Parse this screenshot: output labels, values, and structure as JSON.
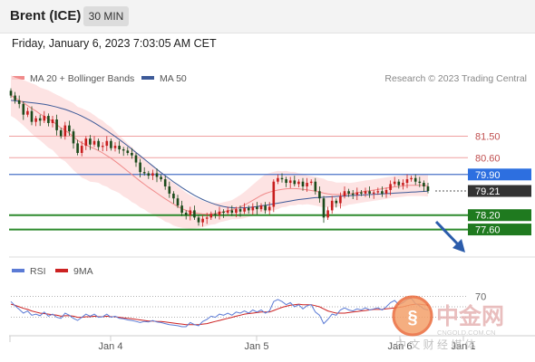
{
  "header": {
    "instrument": "Brent (ICE)",
    "timeframe": "30 MIN",
    "datetime": "Friday, January 6, 2023 7:03:05 AM CET"
  },
  "legend": {
    "ma20_label": "MA 20 + Bollinger Bands",
    "ma50_label": "MA 50",
    "credit": "Research © 2023 Trading Central",
    "rsi_label": "RSI",
    "rsi_ma_label": "9MA"
  },
  "colors": {
    "ma20": "#f08a8a",
    "ma50": "#3d5a98",
    "resistance": "#f0a0a0",
    "pivot": "#4a72c8",
    "support": "#2e8b2e",
    "current_price": "#333333",
    "rsi": "#5b7bd5",
    "rsi_ma": "#cc2222",
    "arrow": "#2b5cab",
    "bands": "#fcdcdc"
  },
  "watermark": {
    "brand": "中金网",
    "domain": "CNGOLD.COM.CN",
    "tagline": "中 文 财 经 媒 体"
  },
  "chart_data": {
    "type": "candlestick",
    "price_axis": {
      "min": 76.6,
      "max": 83.6
    },
    "levels": {
      "resistance": [
        81.5,
        80.6
      ],
      "pivot": 79.9,
      "support": [
        78.2,
        77.6
      ],
      "current": 79.21
    },
    "level_labels": {
      "r1": "81.50",
      "r2": "80.60",
      "pivot": "79.90",
      "current": "79.21",
      "s1": "78.20",
      "s2": "77.60"
    },
    "x_ticks": [
      "Jan 4",
      "Jan 5",
      "Jan 6",
      "Jan 1"
    ],
    "rsi_ticks": [
      "70"
    ],
    "close": [
      83.2,
      83.0,
      82.85,
      82.4,
      82.55,
      82.1,
      82.25,
      82.15,
      82.35,
      82.05,
      82.2,
      81.75,
      81.5,
      81.95,
      81.7,
      81.2,
      80.8,
      81.1,
      81.4,
      81.15,
      81.3,
      81.05,
      81.1,
      81.3,
      81.0,
      81.1,
      80.95,
      80.9,
      80.8,
      80.7,
      80.4,
      80.0,
      79.95,
      79.85,
      79.95,
      79.8,
      79.7,
      79.4,
      79.1,
      78.9,
      78.6,
      78.3,
      78.2,
      78.4,
      78.1,
      77.9,
      78.05,
      78.1,
      78.25,
      78.2,
      78.35,
      78.3,
      78.4,
      78.3,
      78.45,
      78.35,
      78.5,
      78.4,
      78.55,
      78.45,
      78.6,
      78.4,
      78.55,
      79.6,
      79.75,
      79.7,
      79.55,
      79.65,
      79.5,
      79.6,
      79.4,
      79.55,
      79.6,
      79.2,
      78.9,
      78.1,
      78.4,
      78.8,
      78.7,
      79.0,
      79.2,
      79.1,
      79.05,
      79.15,
      79.1,
      79.2,
      79.1,
      79.15,
      79.2,
      79.1,
      79.25,
      79.5,
      79.6,
      79.45,
      79.55,
      79.7,
      79.75,
      79.6,
      79.55,
      79.4,
      79.21
    ],
    "ma20": [
      83.2,
      83.1,
      83.0,
      82.9,
      82.78,
      82.66,
      82.55,
      82.43,
      82.33,
      82.22,
      82.12,
      81.98,
      81.85,
      81.75,
      81.62,
      81.48,
      81.33,
      81.22,
      81.14,
      81.05,
      80.98,
      80.9,
      80.8,
      80.69,
      80.58,
      80.45,
      80.32,
      80.18,
      80.04,
      79.9,
      79.76,
      79.62,
      79.49,
      79.36,
      79.24,
      79.12,
      79.0,
      78.88,
      78.77,
      78.66,
      78.56,
      78.47,
      78.4,
      78.34,
      78.3,
      78.27,
      78.25,
      78.24,
      78.25,
      78.27,
      78.3,
      78.34,
      78.38,
      78.43,
      78.48,
      78.54,
      78.62,
      78.72,
      78.82,
      78.92,
      79.02,
      79.1,
      79.16,
      79.21,
      79.25,
      79.28,
      79.3,
      79.31,
      79.31,
      79.3,
      79.28,
      79.26,
      79.23,
      79.2,
      79.16,
      79.12,
      79.09,
      79.07,
      79.06,
      79.06,
      79.07,
      79.09,
      79.11,
      79.14,
      79.17,
      79.2,
      79.22,
      79.25,
      79.27,
      79.3,
      79.33,
      79.36,
      79.38,
      79.4,
      79.42,
      79.44,
      79.45,
      79.45,
      79.45,
      79.44,
      79.43
    ],
    "ma50": [
      83.0,
      82.98,
      82.96,
      82.94,
      82.92,
      82.9,
      82.88,
      82.86,
      82.83,
      82.8,
      82.76,
      82.72,
      82.67,
      82.62,
      82.56,
      82.49,
      82.42,
      82.34,
      82.25,
      82.16,
      82.06,
      81.95,
      81.84,
      81.73,
      81.61,
      81.49,
      81.36,
      81.23,
      81.1,
      80.96,
      80.82,
      80.68,
      80.54,
      80.4,
      80.26,
      80.12,
      79.98,
      79.85,
      79.72,
      79.59,
      79.47,
      79.35,
      79.24,
      79.13,
      79.03,
      78.94,
      78.85,
      78.78,
      78.71,
      78.65,
      78.6,
      78.56,
      78.53,
      78.51,
      78.5,
      78.5,
      78.51,
      78.52,
      78.54,
      78.56,
      78.59,
      78.61,
      78.64,
      78.67,
      78.7,
      78.73,
      78.76,
      78.79,
      78.82,
      78.85,
      78.87,
      78.89,
      78.91,
      78.93,
      78.94,
      78.95,
      78.96,
      78.97,
      78.98,
      78.99,
      79.0,
      79.01,
      79.02,
      79.03,
      79.04,
      79.05,
      79.06,
      79.07,
      79.08,
      79.09,
      79.1,
      79.11,
      79.12,
      79.13,
      79.14,
      79.15,
      79.16,
      79.17,
      79.18,
      79.19,
      79.2
    ],
    "band_width": [
      0.85,
      0.85,
      0.9,
      0.95,
      1.0,
      1.05,
      1.1,
      1.1,
      1.15,
      1.2,
      1.2,
      1.25,
      1.3,
      1.3,
      1.35,
      1.4,
      1.4,
      1.45,
      1.45,
      1.45,
      1.4,
      1.35,
      1.35,
      1.3,
      1.3,
      1.25,
      1.2,
      1.2,
      1.15,
      1.15,
      1.1,
      1.1,
      1.05,
      1.05,
      1.0,
      1.0,
      0.95,
      0.95,
      0.9,
      0.9,
      0.85,
      0.8,
      0.75,
      0.7,
      0.65,
      0.6,
      0.55,
      0.5,
      0.45,
      0.45,
      0.4,
      0.4,
      0.4,
      0.4,
      0.45,
      0.5,
      0.55,
      0.6,
      0.65,
      0.7,
      0.75,
      0.8,
      0.8,
      0.8,
      0.8,
      0.75,
      0.75,
      0.7,
      0.7,
      0.65,
      0.65,
      0.6,
      0.6,
      0.6,
      0.6,
      0.6,
      0.55,
      0.55,
      0.5,
      0.5,
      0.5,
      0.45,
      0.45,
      0.45,
      0.45,
      0.45,
      0.45,
      0.45,
      0.45,
      0.45,
      0.45,
      0.45,
      0.45,
      0.45,
      0.45,
      0.45,
      0.45,
      0.45,
      0.45,
      0.45,
      0.45
    ],
    "rsi": [
      60,
      52,
      45,
      38,
      42,
      34,
      36,
      33,
      40,
      32,
      36,
      30,
      28,
      38,
      34,
      28,
      24,
      30,
      36,
      32,
      36,
      30,
      31,
      36,
      30,
      32,
      28,
      27,
      25,
      24,
      22,
      20,
      22,
      21,
      24,
      21,
      20,
      18,
      16,
      15,
      14,
      12,
      12,
      20,
      16,
      14,
      22,
      26,
      32,
      30,
      36,
      34,
      38,
      34,
      40,
      38,
      42,
      38,
      44,
      40,
      44,
      38,
      42,
      60,
      64,
      60,
      54,
      58,
      50,
      54,
      46,
      52,
      54,
      40,
      34,
      18,
      26,
      36,
      34,
      44,
      48,
      44,
      42,
      46,
      44,
      48,
      44,
      46,
      48,
      44,
      50,
      58,
      62,
      54,
      58,
      64,
      66,
      56,
      52,
      46,
      44
    ],
    "rsi_ma": [
      55,
      53,
      50,
      47,
      45,
      42,
      40,
      38,
      37,
      36,
      35,
      34,
      32,
      33,
      33,
      32,
      30,
      30,
      31,
      31,
      32,
      31,
      31,
      32,
      31,
      31,
      30,
      29,
      28,
      27,
      26,
      25,
      24,
      23,
      23,
      22,
      22,
      21,
      20,
      19,
      18,
      17,
      16,
      16,
      16,
      16,
      17,
      18,
      20,
      22,
      24,
      26,
      28,
      30,
      32,
      34,
      36,
      37,
      38,
      39,
      40,
      40,
      40,
      43,
      46,
      49,
      51,
      53,
      54,
      55,
      54,
      54,
      54,
      52,
      50,
      46,
      42,
      40,
      38,
      38,
      38,
      39,
      40,
      41,
      42,
      43,
      44,
      45,
      45,
      45,
      46,
      47,
      48,
      49,
      50,
      52,
      54,
      55,
      55,
      54,
      53
    ]
  }
}
